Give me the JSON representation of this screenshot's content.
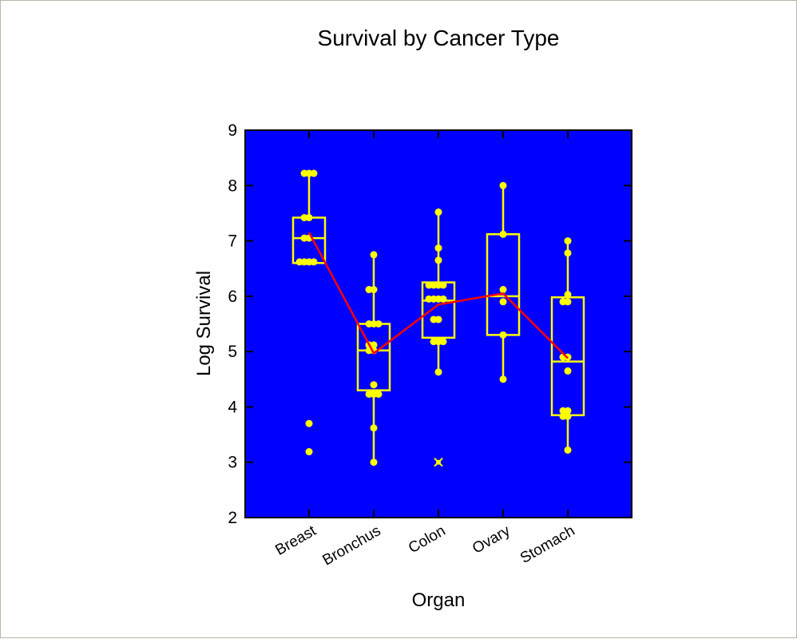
{
  "chart_data": {
    "type": "box",
    "title": "Survival by Cancer Type",
    "xlabel": "Organ",
    "ylabel": "Log Survival",
    "ylim": [
      2,
      9
    ],
    "yticks": [
      "2",
      "3",
      "4",
      "5",
      "6",
      "7",
      "8",
      "9"
    ],
    "categories": [
      "Breast",
      "Bronchus",
      "Colon",
      "Ovary",
      "Stomach"
    ],
    "colors": {
      "plot_background": "#0000ff",
      "box": "#ffff00",
      "points": "#ffff00",
      "mean_line": "#ff0000"
    },
    "boxes": [
      {
        "category": "Breast",
        "whisker_low": 6.6,
        "q1": 6.6,
        "median": 7.05,
        "q3": 7.42,
        "whisker_high": 8.22,
        "points": [
          8.22,
          8.22,
          8.22,
          7.42,
          7.42,
          7.05,
          7.05,
          6.62,
          6.62,
          6.62,
          6.62,
          3.7,
          3.19
        ]
      },
      {
        "category": "Bronchus",
        "whisker_low": 3.0,
        "q1": 4.3,
        "median": 5.02,
        "q3": 5.5,
        "whisker_high": 6.75,
        "points": [
          6.75,
          6.12,
          6.12,
          5.5,
          5.5,
          5.5,
          5.12,
          5.12,
          5.02,
          5.02,
          4.4,
          4.23,
          4.23,
          4.23,
          3.62,
          3.0
        ]
      },
      {
        "category": "Colon",
        "whisker_low": 4.63,
        "q1": 5.25,
        "median": 5.92,
        "q3": 6.25,
        "whisker_high": 7.52,
        "points": [
          7.52,
          6.87,
          6.65,
          6.2,
          6.2,
          6.2,
          6.2,
          5.95,
          5.95,
          5.95,
          5.95,
          5.58,
          5.58,
          5.18,
          5.18,
          5.18,
          4.63
        ],
        "outliers": [
          3.0
        ]
      },
      {
        "category": "Ovary",
        "whisker_low": 4.5,
        "q1": 5.3,
        "median": 6.0,
        "q3": 7.12,
        "whisker_high": 8.0,
        "points": [
          8.0,
          7.12,
          6.12,
          5.9,
          5.3,
          4.5
        ]
      },
      {
        "category": "Stomach",
        "whisker_low": 3.22,
        "q1": 3.85,
        "median": 4.82,
        "q3": 5.98,
        "whisker_high": 7.0,
        "points": [
          7.0,
          6.78,
          6.03,
          5.9,
          5.9,
          4.9,
          4.9,
          4.65,
          3.93,
          3.93,
          3.83,
          3.83,
          3.22
        ]
      }
    ],
    "mean_line": [
      7.15,
      4.97,
      5.85,
      6.05,
      4.88
    ],
    "grid": false,
    "legend": "none"
  }
}
